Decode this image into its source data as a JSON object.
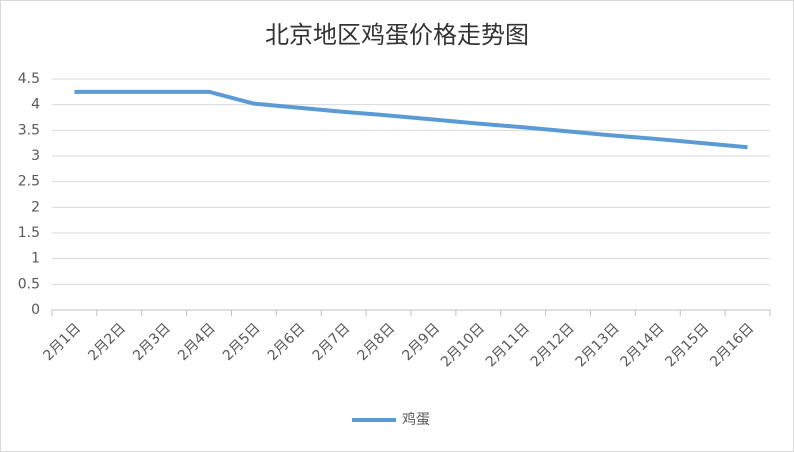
{
  "chart_data": {
    "type": "line",
    "title": "北京地区鸡蛋价格走势图",
    "categories": [
      "2月1日",
      "2月2日",
      "2月3日",
      "2月4日",
      "2月5日",
      "2月6日",
      "2月7日",
      "2月8日",
      "2月9日",
      "2月10日",
      "2月11日",
      "2月12日",
      "2月13日",
      "2月14日",
      "2月15日",
      "2月16日"
    ],
    "series": [
      {
        "name": "鸡蛋",
        "color": "#5b9bd5",
        "values": [
          4.25,
          4.25,
          4.25,
          4.25,
          4.02,
          3.94,
          3.86,
          3.79,
          3.71,
          3.63,
          3.56,
          3.48,
          3.4,
          3.33,
          3.25,
          3.17
        ]
      }
    ],
    "ylim": [
      0,
      4.5
    ],
    "yticks": [
      0,
      0.5,
      1,
      1.5,
      2,
      2.5,
      3,
      3.5,
      4,
      4.5
    ],
    "grid": true,
    "legend": "bottom"
  }
}
